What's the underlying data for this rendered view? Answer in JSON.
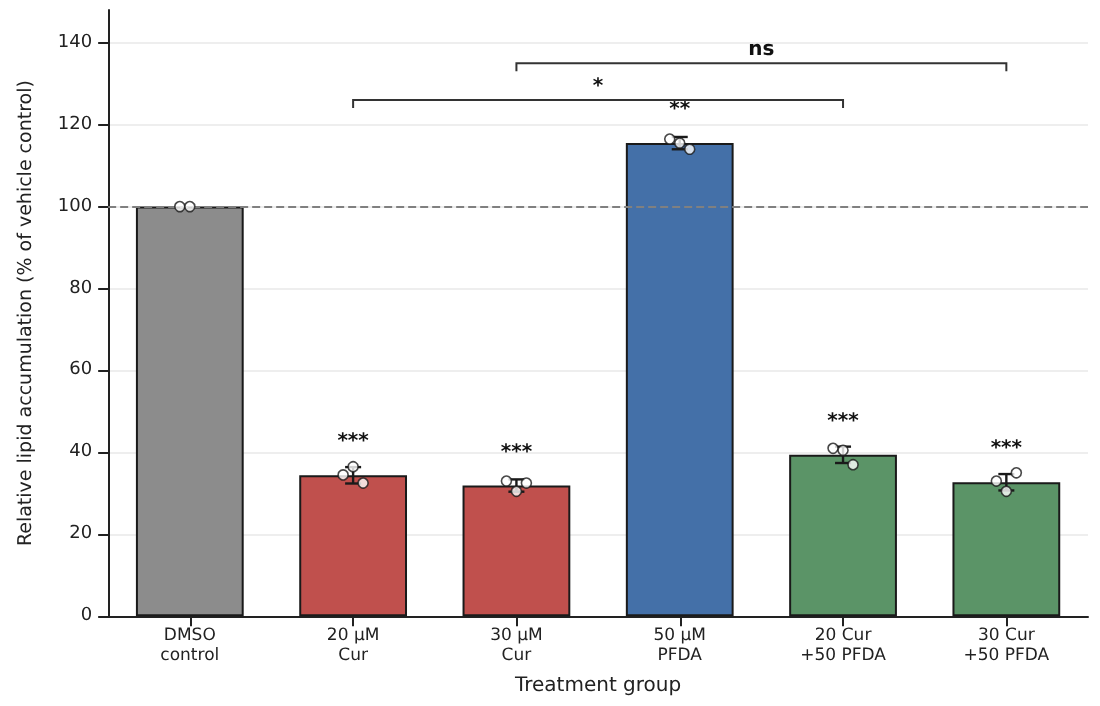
{
  "chart_data": {
    "type": "bar",
    "xlabel": "Treatment group",
    "ylabel": "Relative lipid accumulation (% of vehicle control)",
    "categories": [
      "DMSO\ncontrol",
      "20 µM\nCur",
      "30 µM\nCur",
      "50 µM\nPFDA",
      "20 Cur\n+50 PFDA",
      "30 Cur\n+50 PFDA"
    ],
    "series": [
      {
        "type": "bar",
        "values": [
          100,
          34.4,
          31.9,
          115.5,
          39.4,
          32.7
        ],
        "colors": [
          "#8c8c8c",
          "#c0504d",
          "#c0504d",
          "#4470a8",
          "#5b9467",
          "#5b9467"
        ],
        "errors": [
          null,
          2,
          1.5,
          1.5,
          2,
          2
        ]
      },
      {
        "type": "scatter",
        "color": "#ffffff",
        "x": [
          "DMSO\ncontrol",
          "DMSO\ncontrol",
          "20 µM\nCur",
          "20 µM\nCur",
          "20 µM\nCur",
          "30 µM\nCur",
          "30 µM\nCur",
          "30 µM\nCur",
          "50 µM\nPFDA",
          "50 µM\nPFDA",
          "50 µM\nPFDA",
          "20 Cur\n+50 PFDA",
          "20 Cur\n+50 PFDA",
          "20 Cur\n+50 PFDA",
          "30 Cur\n+50 PFDA",
          "30 Cur\n+50 PFDA",
          "30 Cur\n+50 PFDA"
        ],
        "values": [
          100,
          100,
          34.5,
          36.5,
          32.5,
          33,
          30.5,
          32.5,
          116.5,
          115.5,
          114,
          41,
          40.5,
          37,
          33,
          30.5,
          35
        ]
      }
    ],
    "ylim": [
      0,
      148
    ],
    "yticks": [
      0,
      20,
      40,
      60,
      80,
      100,
      120,
      140
    ],
    "grid": "y",
    "marker": "circle",
    "ref_lines": [
      {
        "axis": "y",
        "value": 100,
        "color": "#808080",
        "line_style": "dashed"
      }
    ],
    "annotations": [
      "***",
      "***",
      "**",
      "***",
      "***",
      "*",
      "ns"
    ]
  }
}
